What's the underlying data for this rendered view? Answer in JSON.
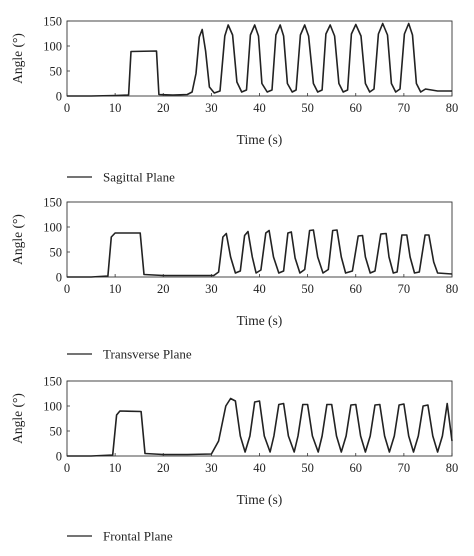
{
  "chart_data": [
    {
      "type": "line",
      "xlabel": "Time (s)",
      "ylabel": "Angle (°)",
      "xlim": [
        0,
        80
      ],
      "ylim": [
        0,
        150
      ],
      "xticks": [
        0,
        10,
        20,
        30,
        40,
        50,
        60,
        70,
        80
      ],
      "yticks": [
        0,
        50,
        100,
        150
      ],
      "legend": "bottom-left",
      "series": [
        {
          "name": "Sagittal Plane",
          "color": "#222222",
          "x": [
            0,
            5,
            10,
            12.8,
            13.3,
            18.6,
            19.1,
            22,
            25,
            26,
            26.8,
            27.5,
            28.1,
            28.8,
            29.6,
            30.6,
            31.8,
            32.8,
            33.5,
            34.4,
            35.3,
            36.3,
            37.3,
            38.1,
            39.0,
            39.8,
            40.5,
            41.6,
            42.6,
            43.4,
            44.3,
            45.0,
            45.8,
            46.8,
            47.6,
            48.5,
            49.4,
            50.2,
            51.2,
            52.1,
            53.0,
            53.8,
            54.7,
            55.6,
            56.5,
            57.4,
            58.3,
            59.1,
            60.0,
            61.1,
            62.0,
            62.9,
            63.8,
            64.7,
            65.6,
            66.6,
            67.4,
            68.3,
            69.2,
            70.1,
            71.0,
            71.8,
            72.6,
            73.5,
            74.5,
            77,
            80
          ],
          "y": [
            0,
            0,
            1,
            2,
            89,
            90,
            3,
            2,
            3,
            8,
            45,
            118,
            133,
            90,
            18,
            6,
            10,
            120,
            142,
            122,
            28,
            8,
            12,
            122,
            142,
            120,
            25,
            8,
            12,
            122,
            142,
            120,
            25,
            8,
            12,
            122,
            142,
            120,
            25,
            8,
            12,
            124,
            142,
            120,
            25,
            8,
            12,
            124,
            143,
            120,
            25,
            8,
            14,
            124,
            145,
            122,
            25,
            8,
            14,
            124,
            145,
            122,
            25,
            8,
            14,
            10,
            10
          ]
        }
      ]
    },
    {
      "type": "line",
      "xlabel": "Time (s)",
      "ylabel": "Angle (°)",
      "xlim": [
        0,
        80
      ],
      "ylim": [
        0,
        150
      ],
      "xticks": [
        0,
        10,
        20,
        30,
        40,
        50,
        60,
        70,
        80
      ],
      "yticks": [
        0,
        50,
        100,
        150
      ],
      "legend": "bottom-left",
      "series": [
        {
          "name": "Transverse Plane",
          "color": "#222222",
          "x": [
            0,
            5,
            8.5,
            9.2,
            10,
            15.2,
            16,
            20,
            25,
            30.5,
            31.5,
            32.4,
            33.1,
            34.0,
            35.0,
            36.0,
            36.9,
            37.6,
            38.5,
            39.3,
            40.3,
            41.3,
            42.0,
            42.9,
            44.0,
            45.0,
            45.9,
            46.6,
            47.4,
            48.4,
            49.4,
            50.4,
            51.2,
            52.1,
            53.2,
            54.3,
            55.2,
            56.1,
            57.0,
            57.9,
            59.3,
            60.5,
            61.4,
            62.0,
            63.0,
            64.0,
            65.2,
            66.3,
            66.9,
            67.8,
            68.6,
            69.6,
            70.6,
            71.3,
            72.2,
            73.2,
            74.4,
            75.2,
            76.2,
            77,
            80
          ],
          "y": [
            0,
            0,
            2,
            80,
            88,
            88,
            5,
            3,
            3,
            3,
            10,
            80,
            87,
            40,
            8,
            12,
            83,
            91,
            40,
            8,
            14,
            88,
            93,
            40,
            8,
            12,
            88,
            90,
            38,
            8,
            15,
            93,
            94,
            40,
            8,
            15,
            93,
            94,
            40,
            8,
            12,
            82,
            83,
            40,
            8,
            12,
            86,
            87,
            40,
            8,
            10,
            84,
            84,
            40,
            8,
            10,
            84,
            84,
            30,
            8,
            6
          ]
        }
      ]
    },
    {
      "type": "line",
      "xlabel": "Time (s)",
      "ylabel": "Angle (°)",
      "xlim": [
        0,
        80
      ],
      "ylim": [
        0,
        150
      ],
      "xticks": [
        0,
        10,
        20,
        30,
        40,
        50,
        60,
        70,
        80
      ],
      "yticks": [
        0,
        50,
        100,
        150
      ],
      "legend": "bottom-left",
      "series": [
        {
          "name": "Frontal Plane",
          "color": "#222222",
          "x": [
            0,
            5,
            9.5,
            10.3,
            11,
            15.4,
            16.2,
            20,
            25,
            30,
            31.5,
            33.0,
            34.0,
            35.0,
            36.0,
            37.0,
            38.0,
            39.0,
            40.0,
            41.0,
            42.2,
            43.0,
            44.0,
            45.0,
            46.0,
            47.2,
            48.0,
            49.0,
            50.0,
            51.0,
            52.2,
            53.0,
            54.0,
            55.0,
            56.0,
            57.0,
            58.0,
            59.0,
            60.0,
            61.0,
            62.0,
            63.0,
            64.0,
            65.0,
            66.0,
            67.0,
            68.0,
            69.0,
            70.0,
            71.0,
            72.0,
            73.0,
            74.0,
            75.0,
            76.0,
            77.0,
            78.0,
            79.0,
            80.0
          ],
          "y": [
            0,
            0,
            2,
            82,
            90,
            89,
            5,
            3,
            3,
            4,
            30,
            100,
            115,
            110,
            40,
            8,
            40,
            108,
            110,
            40,
            8,
            40,
            103,
            105,
            40,
            8,
            40,
            103,
            103,
            40,
            8,
            40,
            103,
            103,
            40,
            8,
            40,
            102,
            103,
            40,
            8,
            40,
            102,
            103,
            40,
            8,
            40,
            102,
            104,
            40,
            8,
            40,
            100,
            102,
            40,
            8,
            40,
            105,
            30
          ]
        }
      ]
    }
  ]
}
